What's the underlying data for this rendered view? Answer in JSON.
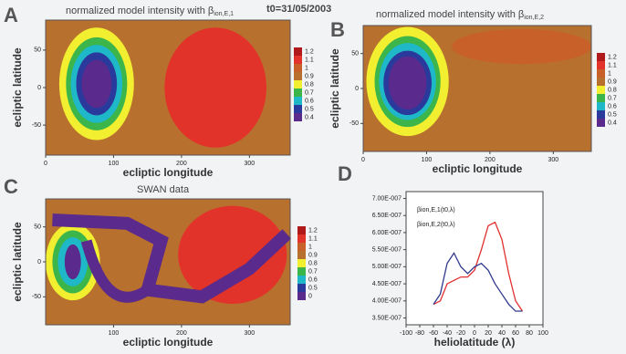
{
  "chart_data": [
    {
      "type": "contour",
      "panel": "A",
      "title": "normalized model intensity with β",
      "title_sub": "ion,E,1",
      "annotation": "t0=31/05/2003",
      "x_label": "ecliptic longitude",
      "y_label": "ecliptic latitude",
      "xlim": [
        0,
        360
      ],
      "xticks": [
        0,
        100,
        200,
        300
      ],
      "ylim": [
        -90,
        90
      ],
      "yticks": [
        50,
        0,
        -50
      ],
      "colorbar": {
        "ticks": [
          1.2,
          1.1,
          1,
          0.9,
          0.8,
          0.7,
          0.6,
          0.5,
          0.4
        ],
        "colors": [
          "#b01a1a",
          "#e2332a",
          "#c8602a",
          "#b8702e",
          "#f2ee30",
          "#3cb54a",
          "#1fb8c8",
          "#2a3a9c",
          "#5a2a8c"
        ]
      }
    },
    {
      "type": "contour",
      "panel": "B",
      "title": "normalized model intensity with β",
      "title_sub": "ion,E,2",
      "x_label": "ecliptic longitude",
      "y_label": "ecliptic latitude",
      "xlim": [
        0,
        360
      ],
      "xticks": [
        0,
        100,
        200,
        300
      ],
      "ylim": [
        -90,
        90
      ],
      "yticks": [
        50,
        0,
        -50
      ],
      "colorbar": {
        "ticks": [
          1.2,
          1.1,
          1,
          0.9,
          0.8,
          0.7,
          0.6,
          0.5,
          0.4
        ],
        "colors": [
          "#b01a1a",
          "#e2332a",
          "#c8602a",
          "#b8702e",
          "#f2ee30",
          "#3cb54a",
          "#1fb8c8",
          "#2a3a9c",
          "#5a2a8c"
        ]
      }
    },
    {
      "type": "contour",
      "panel": "C",
      "title": "SWAN data",
      "x_label": "ecliptic longitude",
      "y_label": "ecliptic latitude",
      "xlim": [
        0,
        360
      ],
      "xticks": [
        100,
        200,
        300
      ],
      "ylim": [
        -90,
        90
      ],
      "yticks": [
        50,
        0,
        -50
      ],
      "colorbar": {
        "ticks": [
          1.2,
          1.1,
          1,
          0.9,
          0.8,
          0.7,
          0.6,
          0.5,
          0
        ],
        "colors": [
          "#b01a1a",
          "#e2332a",
          "#c8602a",
          "#b8702e",
          "#f2ee30",
          "#3cb54a",
          "#1fb8c8",
          "#2a3a9c",
          "#5a2a8c"
        ]
      }
    },
    {
      "type": "line",
      "panel": "D",
      "x_label": "heliolatitude (λ)",
      "x": [
        -60,
        -50,
        -40,
        -30,
        -20,
        -10,
        0,
        10,
        20,
        30,
        40,
        50,
        60,
        70
      ],
      "series": [
        {
          "name": "βion,E,1(t0,λ)",
          "color": "#e03030",
          "values": [
            3.9e-07,
            4e-07,
            4.5e-07,
            4.6e-07,
            4.7e-07,
            4.7e-07,
            4.9e-07,
            5.5e-07,
            6.2e-07,
            6.3e-07,
            5.8e-07,
            4.8e-07,
            4e-07,
            3.7e-07
          ]
        },
        {
          "name": "βion,E,2(t0,λ)",
          "color": "#303a8c",
          "values": [
            3.9e-07,
            4.2e-07,
            5.1e-07,
            5.4e-07,
            5e-07,
            4.8e-07,
            5e-07,
            5.1e-07,
            4.9e-07,
            4.5e-07,
            4.2e-07,
            3.9e-07,
            3.7e-07,
            3.7e-07
          ]
        }
      ],
      "xlim": [
        -100,
        100
      ],
      "xticks": [
        -100,
        -80,
        -60,
        -40,
        -20,
        0,
        20,
        40,
        60,
        80,
        100
      ],
      "ylim": [
        3.3e-07,
        7.2e-07
      ],
      "yticks": [
        {
          "value": 7e-07,
          "label": "7.00E-007"
        },
        {
          "value": 6.5e-07,
          "label": "6.50E-007"
        },
        {
          "value": 6e-07,
          "label": "6.00E-007"
        },
        {
          "value": 5.5e-07,
          "label": "5.50E-007"
        },
        {
          "value": 5e-07,
          "label": "5.00E-007"
        },
        {
          "value": 4.5e-07,
          "label": "4.50E-007"
        },
        {
          "value": 4e-07,
          "label": "4.00E-007"
        },
        {
          "value": 3.5e-07,
          "label": "3.50E-007"
        }
      ]
    }
  ]
}
